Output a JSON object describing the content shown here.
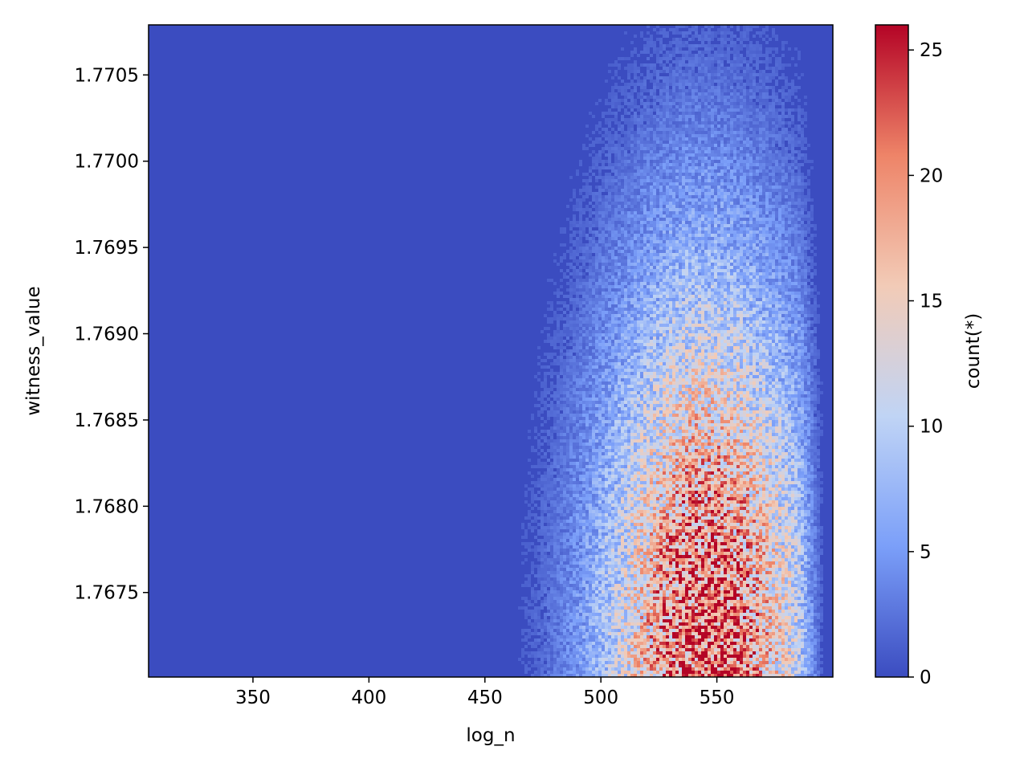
{
  "chart_data": {
    "type": "heatmap",
    "title": "",
    "xlabel": "log_n",
    "ylabel": "witness_value",
    "xlim": [
      305,
      600
    ],
    "ylim": [
      1.76701,
      1.77079
    ],
    "xticks": [
      {
        "value": 350,
        "label": "350"
      },
      {
        "value": 400,
        "label": "400"
      },
      {
        "value": 450,
        "label": "450"
      },
      {
        "value": 500,
        "label": "500"
      },
      {
        "value": 550,
        "label": "550"
      }
    ],
    "yticks": [
      {
        "value": 1.7675,
        "label": "1.7675"
      },
      {
        "value": 1.768,
        "label": "1.7680"
      },
      {
        "value": 1.7685,
        "label": "1.7685"
      },
      {
        "value": 1.769,
        "label": "1.7690"
      },
      {
        "value": 1.7695,
        "label": "1.7695"
      },
      {
        "value": 1.77,
        "label": "1.7700"
      },
      {
        "value": 1.7705,
        "label": "1.7705"
      }
    ],
    "colorbar": {
      "label": "count(*)",
      "colormap": "coolwarm",
      "range": [
        0,
        26
      ],
      "ticks": [
        {
          "value": 0,
          "label": "0"
        },
        {
          "value": 5,
          "label": "5"
        },
        {
          "value": 10,
          "label": "10"
        },
        {
          "value": 15,
          "label": "15"
        },
        {
          "value": 20,
          "label": "20"
        },
        {
          "value": 25,
          "label": "25"
        }
      ],
      "stops": [
        "#3b4cc0",
        "#7b9ff9",
        "#c0d4f5",
        "#f2cbb7",
        "#ee8468",
        "#b40426"
      ]
    },
    "density": {
      "description_peak_log_n": 545,
      "peak_witness_value": 1.76705,
      "peak_count": 25,
      "support_log_n": [
        305,
        600
      ]
    }
  }
}
